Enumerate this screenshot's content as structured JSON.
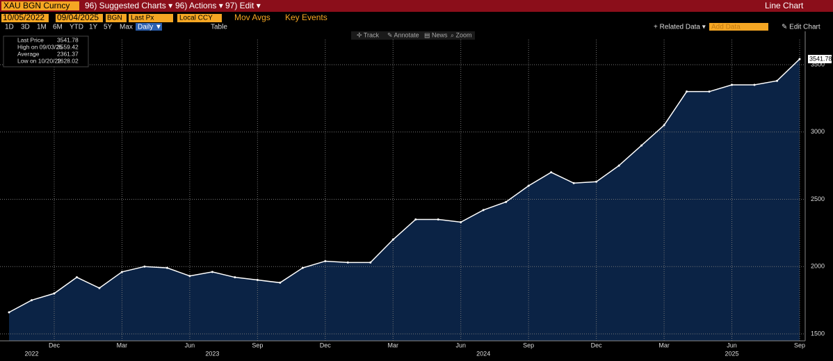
{
  "toolbar": {
    "ticker": "XAU BGN Curncy",
    "menus": [
      "96) Suggested Charts ▾",
      "96) Actions ▾",
      "97) Edit ▾"
    ],
    "view": "Line Chart",
    "start_date": "10/05/2022",
    "end_date": "09/04/2025",
    "source": "BGN",
    "field": "Last Px",
    "currency": "Local CCY",
    "options": [
      "Mov Avgs",
      "Key Events"
    ],
    "periods": [
      "1D",
      "3D",
      "1M",
      "6M",
      "YTD",
      "1Y",
      "5Y",
      "Max"
    ],
    "frequency": "Daily ▼",
    "table": "Table",
    "related": "+ Related Data ▾",
    "add_data": "Add Data",
    "edit_chart": "✎ Edit Chart",
    "tools": [
      "✢ Track",
      "✎ Annotate",
      "▤ News",
      "⌕ Zoom"
    ]
  },
  "legend": {
    "rows": [
      {
        "label": "Last Price",
        "value": "3541.78"
      },
      {
        "label": "High on 09/03/25",
        "value": "3559.42"
      },
      {
        "label": "Average",
        "value": "2361.37"
      },
      {
        "label": "Low on 10/20/22",
        "value": "1628.02"
      }
    ]
  },
  "chart_data": {
    "type": "area",
    "last_label": "3541.78",
    "x": [
      "2022-10",
      "2022-11",
      "2022-12",
      "2023-01",
      "2023-02",
      "2023-03",
      "2023-04",
      "2023-05",
      "2023-06",
      "2023-07",
      "2023-08",
      "2023-09",
      "2023-10",
      "2023-11",
      "2023-12",
      "2024-01",
      "2024-02",
      "2024-03",
      "2024-04",
      "2024-05",
      "2024-06",
      "2024-07",
      "2024-08",
      "2024-09",
      "2024-10",
      "2024-11",
      "2024-12",
      "2025-01",
      "2025-02",
      "2025-03",
      "2025-04",
      "2025-05",
      "2025-06",
      "2025-07",
      "2025-08",
      "2025-09"
    ],
    "series": [
      {
        "name": "Last Price",
        "color": "#ffffff",
        "values": [
          1660,
          1750,
          1800,
          1920,
          1840,
          1960,
          2000,
          1990,
          1930,
          1960,
          1920,
          1900,
          1880,
          1990,
          2040,
          2030,
          2030,
          2200,
          2350,
          2350,
          2330,
          2420,
          2480,
          2600,
          2700,
          2620,
          2630,
          2750,
          2900,
          3050,
          3300,
          3300,
          3350,
          3350,
          3380,
          3541.78
        ]
      }
    ],
    "xlim": [
      "2022-10",
      "2025-09"
    ],
    "xticks": [
      {
        "value": "2022-12",
        "label": "Dec"
      },
      {
        "value": "2023-03",
        "label": "Mar"
      },
      {
        "value": "2023-06",
        "label": "Jun"
      },
      {
        "value": "2023-09",
        "label": "Sep"
      },
      {
        "value": "2023-12",
        "label": "Dec"
      },
      {
        "value": "2024-03",
        "label": "Mar"
      },
      {
        "value": "2024-06",
        "label": "Jun"
      },
      {
        "value": "2024-09",
        "label": "Sep"
      },
      {
        "value": "2024-12",
        "label": "Dec"
      },
      {
        "value": "2025-03",
        "label": "Mar"
      },
      {
        "value": "2025-06",
        "label": "Jun"
      },
      {
        "value": "2025-09",
        "label": "Sep"
      }
    ],
    "year_labels": [
      {
        "value": "2022-11",
        "label": "2022"
      },
      {
        "value": "2023-07",
        "label": "2023"
      },
      {
        "value": "2024-07",
        "label": "2024"
      },
      {
        "value": "2025-06",
        "label": "2025"
      }
    ],
    "ylim": [
      1448,
      3748
    ],
    "yticks": [
      1500,
      2000,
      2500,
      3000,
      3500
    ],
    "grid": true,
    "fill": "#0b2345"
  }
}
